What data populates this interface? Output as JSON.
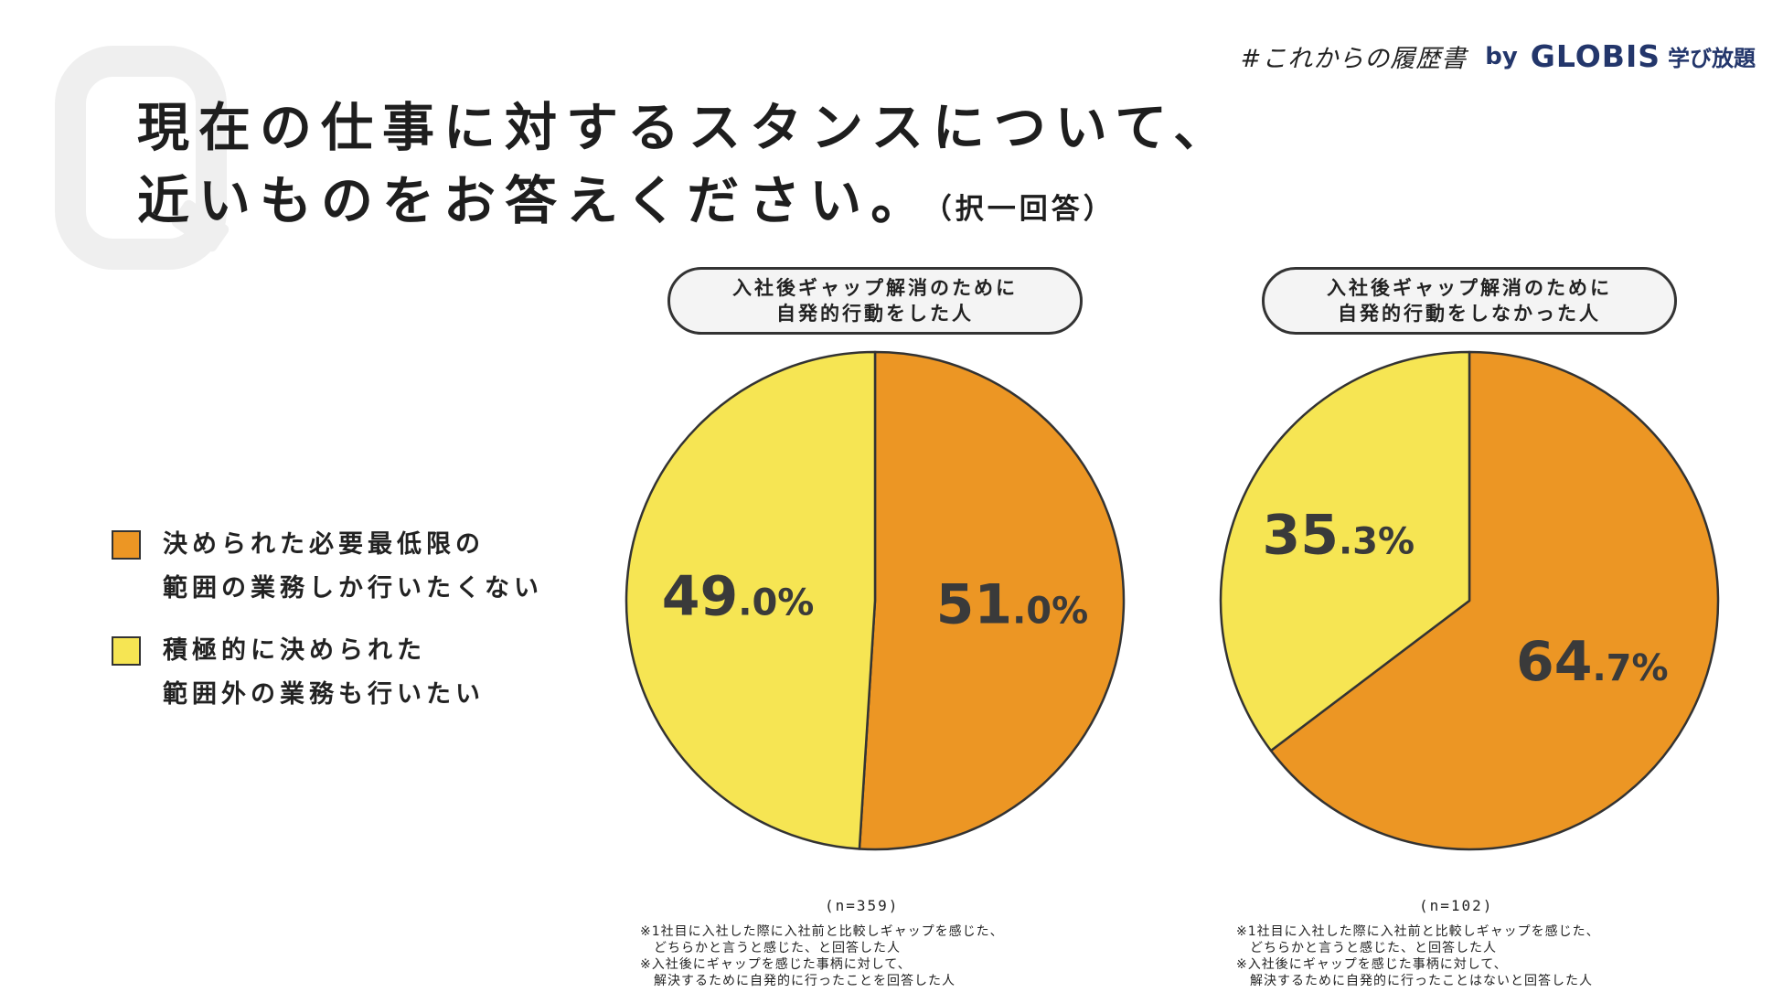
{
  "header": {
    "hashtag": "#これからの履歴書",
    "by": "by",
    "logo": "GLOBIS",
    "logo_sub": "学び放題"
  },
  "title": {
    "line1": "現在の仕事に対するスタンスについて、",
    "line2": "近いものをお答えください。",
    "note": "（択一回答）"
  },
  "legend": [
    {
      "label": "決められた必要最低限の\n範囲の業務しか行いたくない",
      "color": "#ec9624"
    },
    {
      "label": "積極的に決められた\n範囲外の業務も行いたい",
      "color": "#f6e553"
    }
  ],
  "chart_data": [
    {
      "type": "pie",
      "title": "入社後ギャップ解消のために\n自発的行動をした人",
      "categories": [
        "決められた必要最低限の範囲の業務しか行いたくない",
        "積極的に決められた範囲外の業務も行いたい"
      ],
      "values": [
        51.0,
        49.0
      ],
      "labels": [
        {
          "main": "51",
          "dec": ".0%"
        },
        {
          "main": "49",
          "dec": ".0%"
        }
      ],
      "colors": [
        "#ec9624",
        "#f6e553"
      ],
      "n_label": "(n=359)",
      "footnote": "※1社目に入社した際に入社前と比較しギャップを感じた、\n　どちらかと言うと感じた、と回答した人\n※入社後にギャップを感じた事柄に対して、\n　解決するために自発的に行ったことを回答した人"
    },
    {
      "type": "pie",
      "title": "入社後ギャップ解消のために\n自発的行動をしなかった人",
      "categories": [
        "決められた必要最低限の範囲の業務しか行いたくない",
        "積極的に決められた範囲外の業務も行いたい"
      ],
      "values": [
        64.7,
        35.3
      ],
      "labels": [
        {
          "main": "64",
          "dec": ".7%"
        },
        {
          "main": "35",
          "dec": ".3%"
        }
      ],
      "colors": [
        "#ec9624",
        "#f6e553"
      ],
      "n_label": "(n=102)",
      "footnote": "※1社目に入社した際に入社前と比較しギャップを感じた、\n　どちらかと言うと感じた、と回答した人\n※入社後にギャップを感じた事柄に対して、\n　解決するために自発的に行ったことはないと回答した人"
    }
  ]
}
